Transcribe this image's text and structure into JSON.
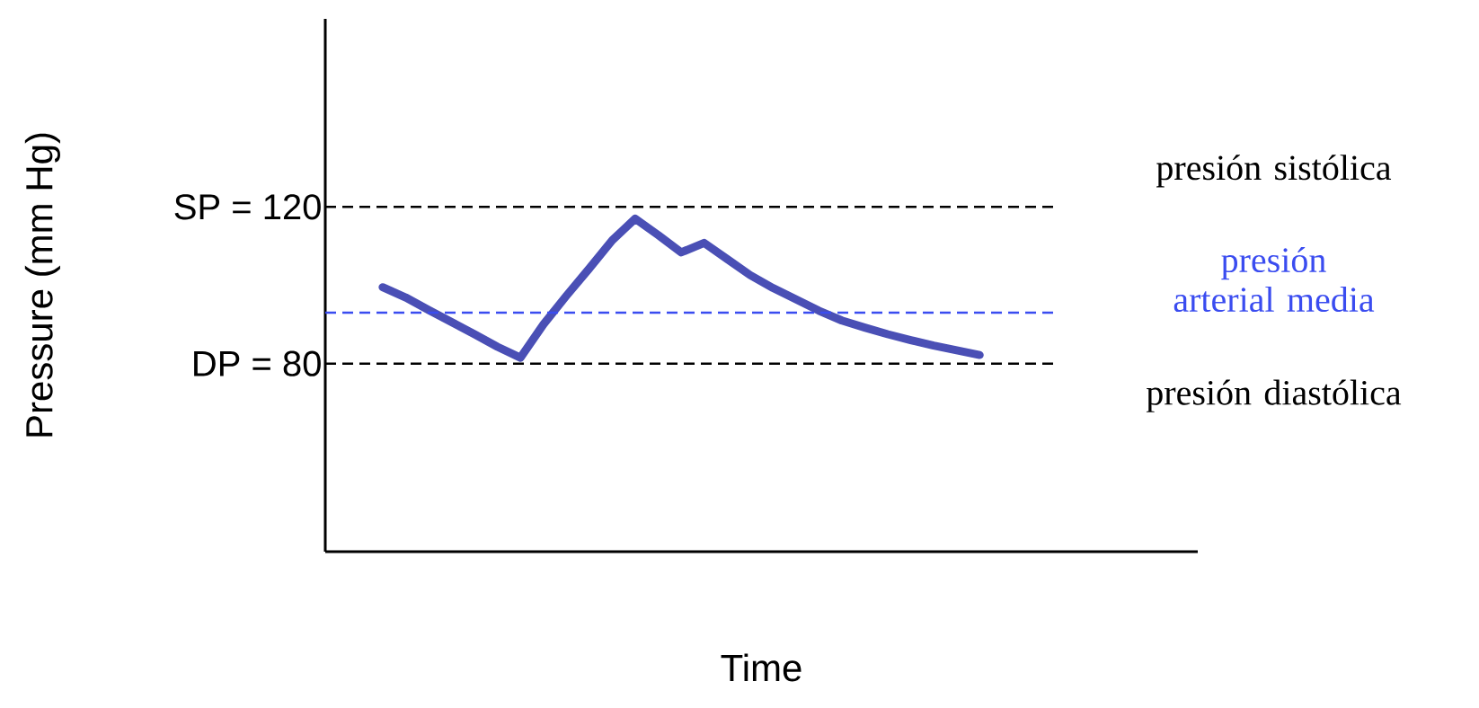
{
  "chart_data": {
    "type": "line",
    "xlabel": "Time",
    "ylabel": "Pressure (mm Hg)",
    "categories": [
      null,
      null,
      null,
      null,
      null,
      null,
      null,
      null,
      null,
      null,
      null,
      null,
      null,
      null,
      null,
      null,
      null,
      null,
      null,
      null,
      null,
      null,
      null,
      null,
      null,
      null,
      null,
      null,
      null,
      null,
      null,
      null,
      null,
      null,
      null,
      null,
      null,
      null
    ],
    "series": [
      {
        "color": "#4a4fb5",
        "values": [
          null,
          null,
          99.5,
          96.9,
          93.7,
          90.6,
          87.5,
          84.3,
          81.5,
          90,
          97.3,
          104.3,
          111.5,
          117,
          112.8,
          108.4,
          110.8,
          106.7,
          102.6,
          99.3,
          96.4,
          93.5,
          91,
          89.2,
          87.5,
          86,
          84.6,
          83.4,
          82.2,
          null,
          null,
          null,
          null,
          null,
          null,
          null,
          null,
          null
        ]
      }
    ],
    "ylim": [
      32,
      168
    ],
    "yticks": [
      {
        "value": 80,
        "label": "DP =   80"
      },
      {
        "value": 120,
        "label": "SP = 120"
      }
    ],
    "tick_labels": "y",
    "grid": false,
    "marker": "none",
    "line_style": "solid",
    "ref_lines": [
      {
        "axis": "y",
        "value": 120,
        "label": "presión sistólica",
        "color": "#000000",
        "line_style": "dashed"
      },
      {
        "axis": "y",
        "value": 93,
        "label": "presión arterial media",
        "color": "#3a4cf0",
        "line_style": "dashed"
      },
      {
        "axis": "y",
        "value": 80,
        "label": "presión diastólica",
        "color": "#000000",
        "line_style": "dashed"
      }
    ]
  }
}
